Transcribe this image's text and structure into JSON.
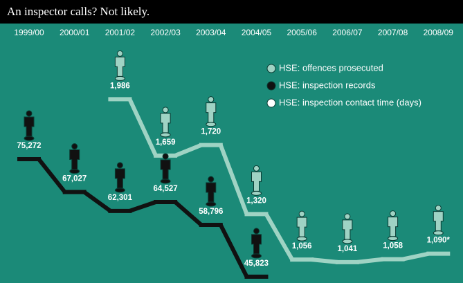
{
  "chart_data": {
    "type": "line",
    "title": "An inspector calls? Not likely.",
    "categories": [
      "1999/00",
      "2000/01",
      "2001/02",
      "2002/03",
      "2003/04",
      "2004/05",
      "2005/06",
      "2006/07",
      "2007/08",
      "2008/09"
    ],
    "series": [
      {
        "name": "HSE: offences prosecuted",
        "color": "#9fd3c4",
        "values": [
          null,
          null,
          1986,
          1659,
          1720,
          1320,
          1056,
          1041,
          1058,
          1090
        ],
        "value_labels": [
          null,
          null,
          "1,986",
          "1,659",
          "1,720",
          "1,320",
          "1,056",
          "1,041",
          "1,058",
          "1,090*"
        ]
      },
      {
        "name": "HSE: inspection records",
        "color": "#111111",
        "axis": "y2",
        "values": [
          75272,
          67027,
          62301,
          64527,
          58796,
          45823,
          null,
          null,
          null,
          null
        ],
        "value_labels": [
          "75,272",
          "67,027",
          "62,301",
          "64,527",
          "58,796",
          "45,823",
          null,
          null,
          null,
          null
        ]
      },
      {
        "name": "HSE: inspection contact time (days)",
        "color": "#ffffff",
        "values": [
          null,
          null,
          null,
          null,
          null,
          null,
          null,
          null,
          null,
          null
        ]
      }
    ],
    "ylim": [
      900,
      2100
    ],
    "y2lim": [
      40000,
      80000
    ]
  }
}
